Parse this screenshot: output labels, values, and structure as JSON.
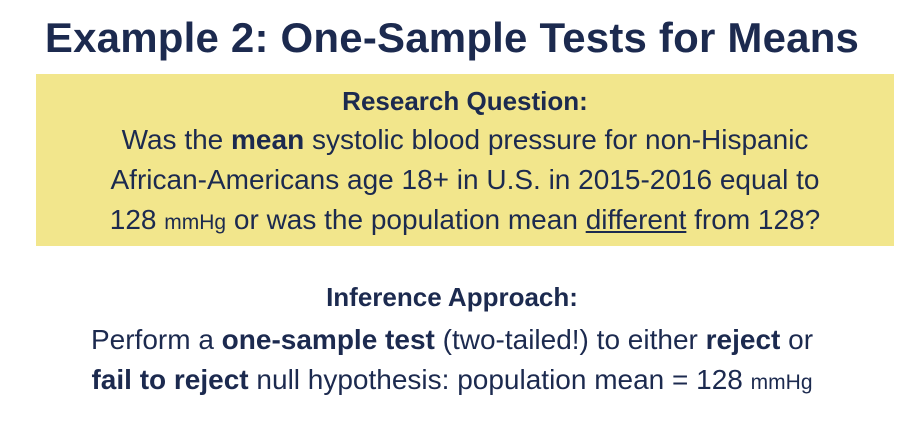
{
  "slide": {
    "title": "Example 2: One-Sample Tests for Means"
  },
  "research_question": {
    "heading": "Research Question:",
    "line1_pre": "Was the ",
    "line1_bold": "mean",
    "line1_post": " systolic blood pressure for non-Hispanic",
    "line2": "African-Americans age 18+ in U.S. in 2015-2016 equal to",
    "line3_num": "128 ",
    "line3_unit": "mmHg",
    "line3_mid": " or was the population mean ",
    "line3_underline": "different",
    "line3_post": " from 128?"
  },
  "inference": {
    "heading": "Inference Approach:",
    "line1_pre": "Perform a ",
    "line1_bold": "one-sample test",
    "line1_mid": " (two-tailed!) to either ",
    "line1_bold2": "reject",
    "line1_post": " or",
    "line2_bold": "fail to reject",
    "line2_mid": " null hypothesis: population mean = 128 ",
    "line2_unit": "mmHg"
  },
  "colors": {
    "text": "#1c2a4f",
    "highlight_box": "#f2e68c",
    "background": "#ffffff"
  }
}
